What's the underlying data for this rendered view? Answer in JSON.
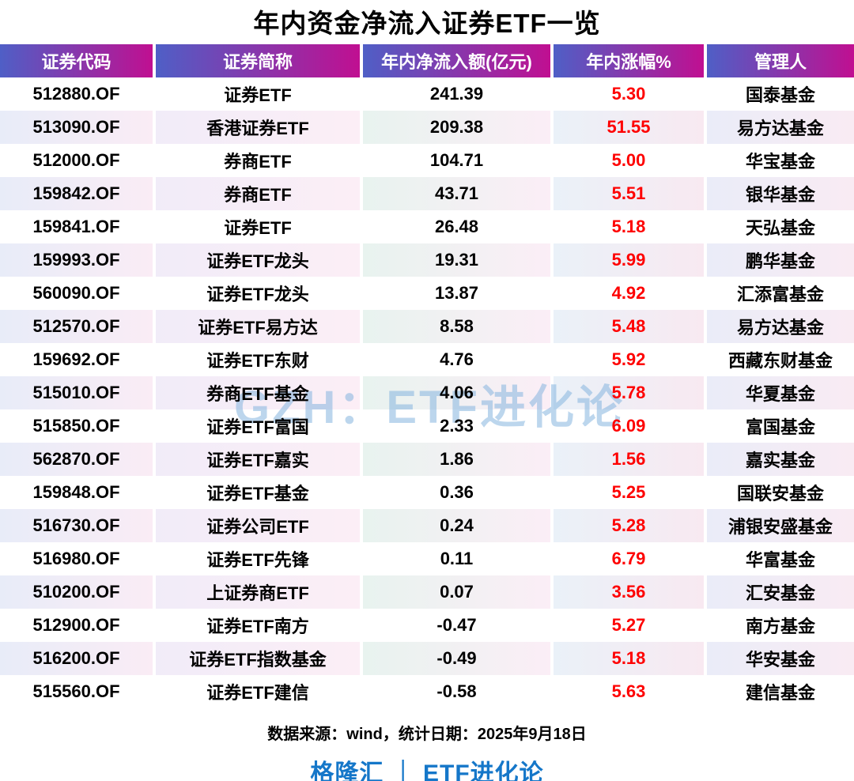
{
  "title": "年内资金净流入证券ETF一览",
  "watermark": "GZH：ETF进化论",
  "footer": {
    "source": "数据来源：wind，统计日期：2025年9月18日",
    "branding": "格隆汇 ｜ ETF进化论"
  },
  "colors": {
    "header_gradient_start": "#4f5fc6",
    "header_gradient_end": "#c00f91",
    "change_text": "#fe0000",
    "branding_blue": "#1577c9",
    "watermark_blue": "#a9cde9"
  },
  "chart_data": {
    "type": "table",
    "title": "年内资金净流入证券ETF一览",
    "columns": [
      "证券代码",
      "证券简称",
      "年内净流入额(亿元)",
      "年内涨幅%",
      "管理人"
    ],
    "rows": [
      [
        "512880.OF",
        "证券ETF",
        "241.39",
        "5.30",
        "国泰基金"
      ],
      [
        "513090.OF",
        "香港证券ETF",
        "209.38",
        "51.55",
        "易方达基金"
      ],
      [
        "512000.OF",
        "券商ETF",
        "104.71",
        "5.00",
        "华宝基金"
      ],
      [
        "159842.OF",
        "券商ETF",
        "43.71",
        "5.51",
        "银华基金"
      ],
      [
        "159841.OF",
        "证券ETF",
        "26.48",
        "5.18",
        "天弘基金"
      ],
      [
        "159993.OF",
        "证券ETF龙头",
        "19.31",
        "5.99",
        "鹏华基金"
      ],
      [
        "560090.OF",
        "证券ETF龙头",
        "13.87",
        "4.92",
        "汇添富基金"
      ],
      [
        "512570.OF",
        "证券ETF易方达",
        "8.58",
        "5.48",
        "易方达基金"
      ],
      [
        "159692.OF",
        "证券ETF东财",
        "4.76",
        "5.92",
        "西藏东财基金"
      ],
      [
        "515010.OF",
        "券商ETF基金",
        "4.06",
        "5.78",
        "华夏基金"
      ],
      [
        "515850.OF",
        "证券ETF富国",
        "2.33",
        "6.09",
        "富国基金"
      ],
      [
        "562870.OF",
        "证券ETF嘉实",
        "1.86",
        "1.56",
        "嘉实基金"
      ],
      [
        "159848.OF",
        "证券ETF基金",
        "0.36",
        "5.25",
        "国联安基金"
      ],
      [
        "516730.OF",
        "证券公司ETF",
        "0.24",
        "5.28",
        "浦银安盛基金"
      ],
      [
        "516980.OF",
        "证券ETF先锋",
        "0.11",
        "6.79",
        "华富基金"
      ],
      [
        "510200.OF",
        "上证券商ETF",
        "0.07",
        "3.56",
        "汇安基金"
      ],
      [
        "512900.OF",
        "证券ETF南方",
        "-0.47",
        "5.27",
        "南方基金"
      ],
      [
        "516200.OF",
        "证券ETF指数基金",
        "-0.49",
        "5.18",
        "华安基金"
      ],
      [
        "515560.OF",
        "证券ETF建信",
        "-0.58",
        "5.63",
        "建信基金"
      ]
    ]
  }
}
